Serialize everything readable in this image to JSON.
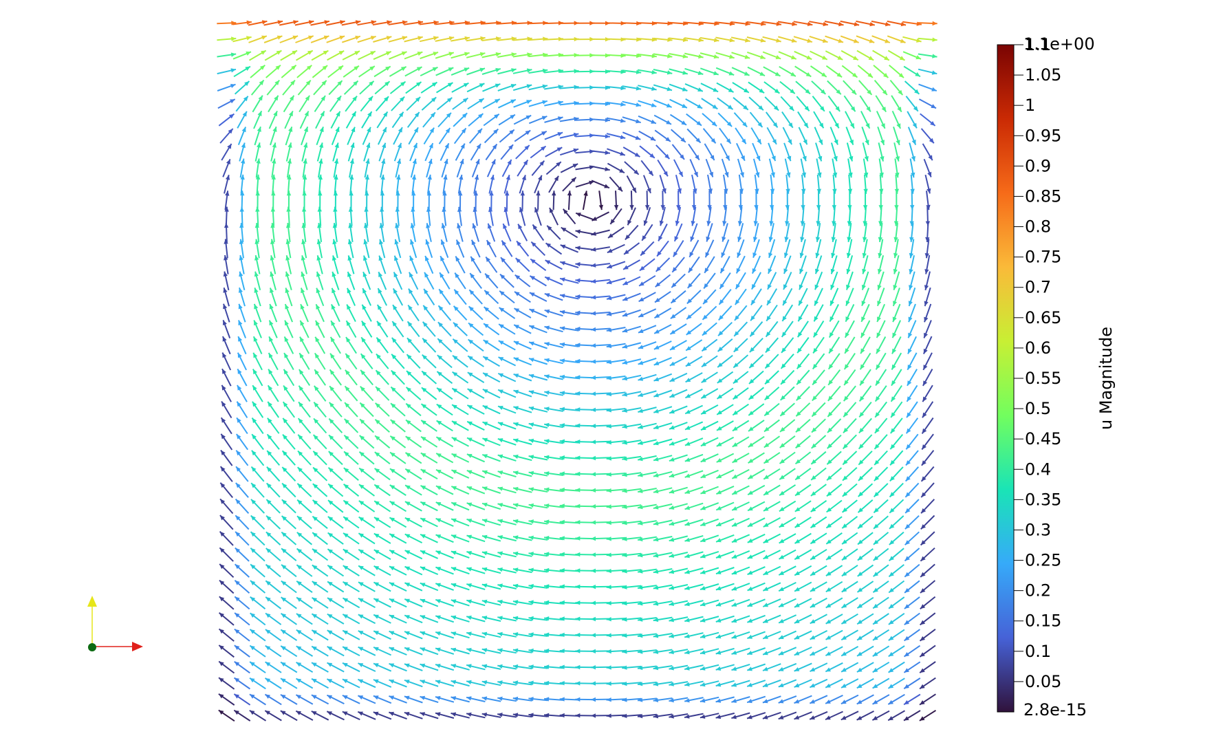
{
  "scalar_bar": {
    "title": "u Magnitude",
    "range_min_label": "2.8e-15",
    "range_max_label": "1.1e+00",
    "range": [
      0,
      1.1
    ],
    "ticks": [
      {
        "value": 0.05,
        "label": "0.05"
      },
      {
        "value": 0.1,
        "label": "0.1"
      },
      {
        "value": 0.15,
        "label": "0.15"
      },
      {
        "value": 0.2,
        "label": "0.2"
      },
      {
        "value": 0.25,
        "label": "0.25"
      },
      {
        "value": 0.3,
        "label": "0.3"
      },
      {
        "value": 0.35,
        "label": "0.35"
      },
      {
        "value": 0.4,
        "label": "0.4"
      },
      {
        "value": 0.45,
        "label": "0.45"
      },
      {
        "value": 0.5,
        "label": "0.5"
      },
      {
        "value": 0.55,
        "label": "0.55"
      },
      {
        "value": 0.6,
        "label": "0.6"
      },
      {
        "value": 0.65,
        "label": "0.65"
      },
      {
        "value": 0.7,
        "label": "0.7"
      },
      {
        "value": 0.75,
        "label": "0.75"
      },
      {
        "value": 0.8,
        "label": "0.8"
      },
      {
        "value": 0.85,
        "label": "0.85"
      },
      {
        "value": 0.9,
        "label": "0.9"
      },
      {
        "value": 0.95,
        "label": "0.95"
      },
      {
        "value": 1.0,
        "label": "1"
      },
      {
        "value": 1.05,
        "label": "1.05"
      },
      {
        "value": 1.1,
        "label": "1.1"
      }
    ],
    "colormap": [
      "#30123b",
      "#4662d7",
      "#36aaf9",
      "#1ae4b6",
      "#72fe5e",
      "#c8ef34",
      "#faba39",
      "#f66b19",
      "#ca2a04",
      "#7a0403"
    ]
  },
  "vector_field": {
    "glyph_type": "arrow",
    "pattern": "lid-driven cavity flow, single primary clockwise vortex",
    "lid_velocity": 1.0,
    "vortex_center": [
      0.52,
      0.75
    ]
  },
  "orientation_axes": {
    "x_color": "#e0201b",
    "y_color": "#e6e61a",
    "z_color": "#0c6b12"
  },
  "colors": {
    "background": "#ffffff",
    "text": "#000000"
  }
}
